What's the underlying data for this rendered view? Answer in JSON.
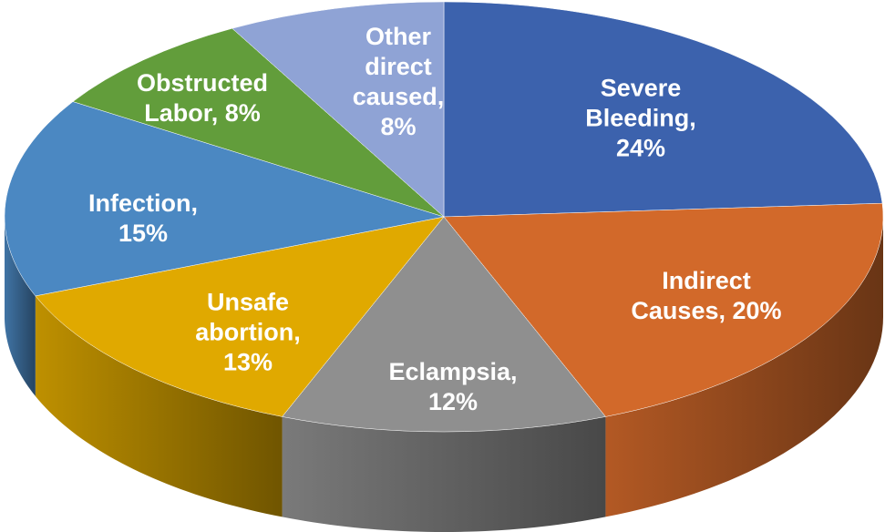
{
  "chart_data": {
    "type": "pie",
    "style": "3d",
    "title": "",
    "start": "12 o'clock, clockwise",
    "slices": [
      {
        "name": "Severe Bleeding",
        "value": 24,
        "label": "24%",
        "color": "#3c62ad"
      },
      {
        "name": "Indirect Causes",
        "value": 20,
        "label": "20%",
        "color": "#d2692a"
      },
      {
        "name": "Eclampsia",
        "value": 12,
        "label": "12%",
        "color": "#8f8f8f"
      },
      {
        "name": "Unsafe abortion",
        "value": 13,
        "label": "13%",
        "color": "#e0a900"
      },
      {
        "name": "Infection",
        "value": 15,
        "label": "15%",
        "color": "#4b88c2"
      },
      {
        "name": "Obstructed Labor",
        "value": 8,
        "label": "8%",
        "color": "#629d3b"
      },
      {
        "name": "Other direct caused",
        "value": 8,
        "label": "8%",
        "color": "#8fa3d5"
      }
    ]
  }
}
